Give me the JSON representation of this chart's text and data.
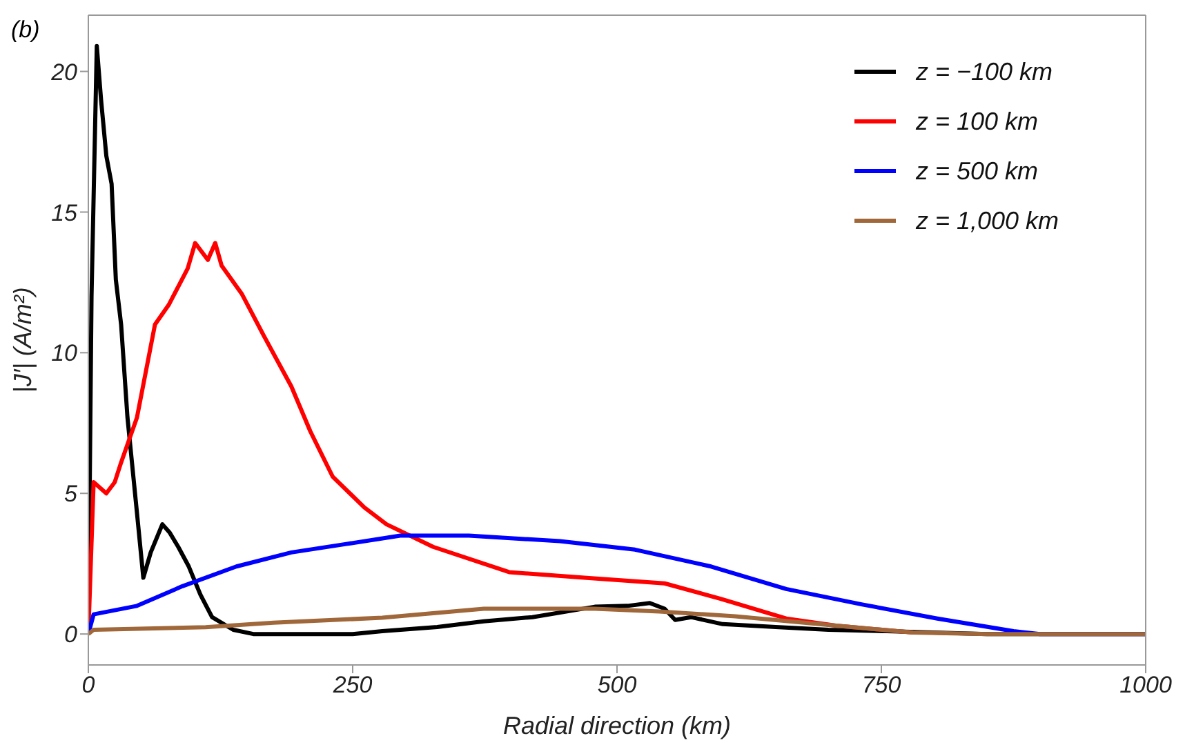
{
  "chart_data": {
    "type": "line",
    "xlabel": "Radial direction (km)",
    "ylabel": "|J′| (A/m²)",
    "annotations": [
      "(b)"
    ],
    "xlim": [
      0,
      1000
    ],
    "ylim": [
      -1.1,
      22
    ],
    "xticks": [
      0,
      250,
      500,
      750,
      1000
    ],
    "yticks": [
      0,
      5,
      10,
      15,
      20
    ],
    "legend": "top right",
    "marker": "none",
    "line_style": "solid",
    "series": [
      {
        "name": "z = −100 km",
        "color": "#000000",
        "x": [
          0,
          3,
          8,
          12,
          17,
          22,
          26,
          31,
          37,
          46,
          52,
          59,
          70,
          77,
          85,
          95,
          106,
          117,
          137,
          156,
          200,
          250,
          278,
          330,
          374,
          420,
          479,
          510,
          531,
          545,
          555,
          570,
          600,
          650,
          700,
          755,
          800,
          850,
          1000
        ],
        "values": [
          0,
          12,
          20.9,
          19,
          17,
          16,
          12.6,
          11,
          7.7,
          4.3,
          2.0,
          2.9,
          3.9,
          3.6,
          3.1,
          2.4,
          1.4,
          0.6,
          0.15,
          0,
          0,
          0,
          0.1,
          0.25,
          0.45,
          0.6,
          0.97,
          1.0,
          1.1,
          0.9,
          0.5,
          0.6,
          0.35,
          0.25,
          0.15,
          0.1,
          0.05,
          0,
          0
        ]
      },
      {
        "name": "z = 100 km",
        "color": "#ff0000",
        "x": [
          0,
          5,
          17,
          25,
          31,
          46,
          63,
          76,
          94,
          101,
          113,
          120,
          126,
          145,
          166,
          192,
          210,
          231,
          261,
          282,
          326,
          398,
          469,
          545,
          598,
          660,
          707,
          780
        ],
        "values": [
          0,
          5.4,
          5.0,
          5.4,
          6.1,
          7.7,
          11.0,
          11.7,
          13.0,
          13.9,
          13.3,
          13.9,
          13.1,
          12.1,
          10.6,
          8.8,
          7.2,
          5.6,
          4.5,
          3.9,
          3.1,
          2.2,
          2.0,
          1.8,
          1.25,
          0.55,
          0.3,
          0.05
        ]
      },
      {
        "name": "z = 500 km",
        "color": "#0000ff",
        "x": [
          0,
          5,
          46,
          89,
          140,
          192,
          244,
          295,
          360,
          446,
          517,
          589,
          660,
          732,
          803,
          875,
          900,
          1000
        ],
        "values": [
          0,
          0.7,
          1.0,
          1.7,
          2.4,
          2.9,
          3.2,
          3.5,
          3.5,
          3.3,
          3.0,
          2.4,
          1.6,
          1.05,
          0.55,
          0.1,
          0,
          0
        ]
      },
      {
        "name": "z = 1,000 km",
        "color": "#a0683a",
        "x": [
          0,
          5,
          111,
          175,
          278,
          374,
          479,
          540,
          612,
          707,
          780,
          850,
          1000
        ],
        "values": [
          0,
          0.15,
          0.24,
          0.4,
          0.58,
          0.9,
          0.9,
          0.8,
          0.63,
          0.3,
          0.05,
          0,
          0
        ]
      }
    ]
  }
}
